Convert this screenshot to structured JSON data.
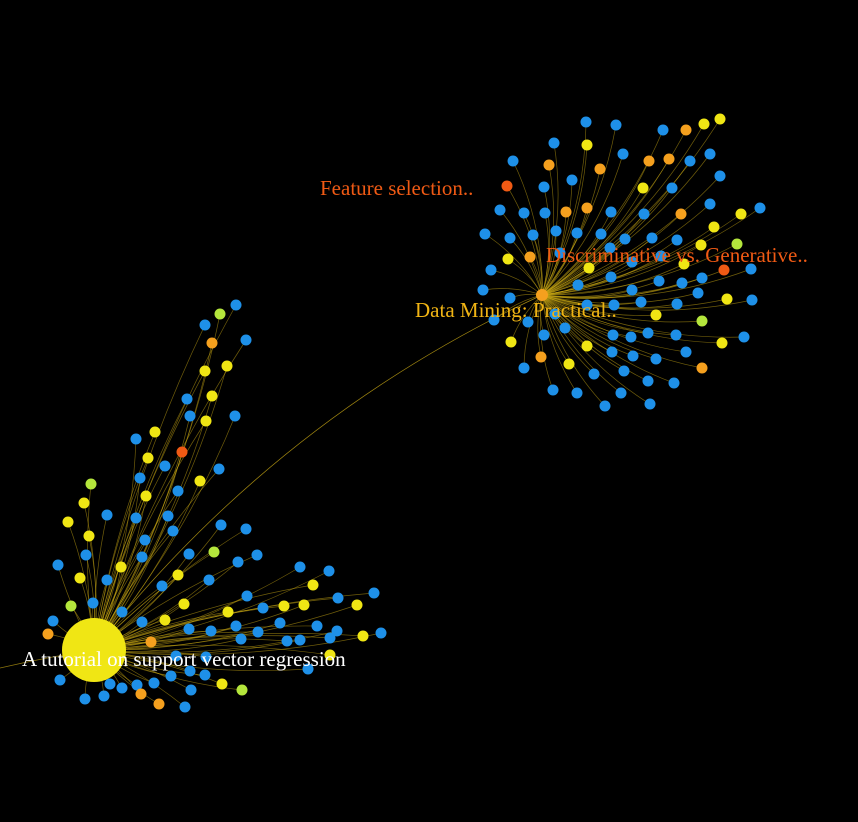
{
  "colors": {
    "background": "#000000",
    "edge": "#c8a814",
    "blue": "#1e90e8",
    "yellow": "#f0e614",
    "orange": "#f5a01e",
    "red": "#f05a14",
    "lime": "#b4e63c",
    "gold": "#f0c814"
  },
  "labels": {
    "main": "A tutorial on support vector regression",
    "data_mining": "Data Mining: Practical..",
    "feature_selection": "Feature selection..",
    "discriminative": "Discriminative vs. Generative.."
  },
  "label_colors": {
    "main": "#ffffff",
    "data_mining": "#f0b414",
    "feature_selection": "#f05a14",
    "discriminative": "#f05a14"
  }
}
